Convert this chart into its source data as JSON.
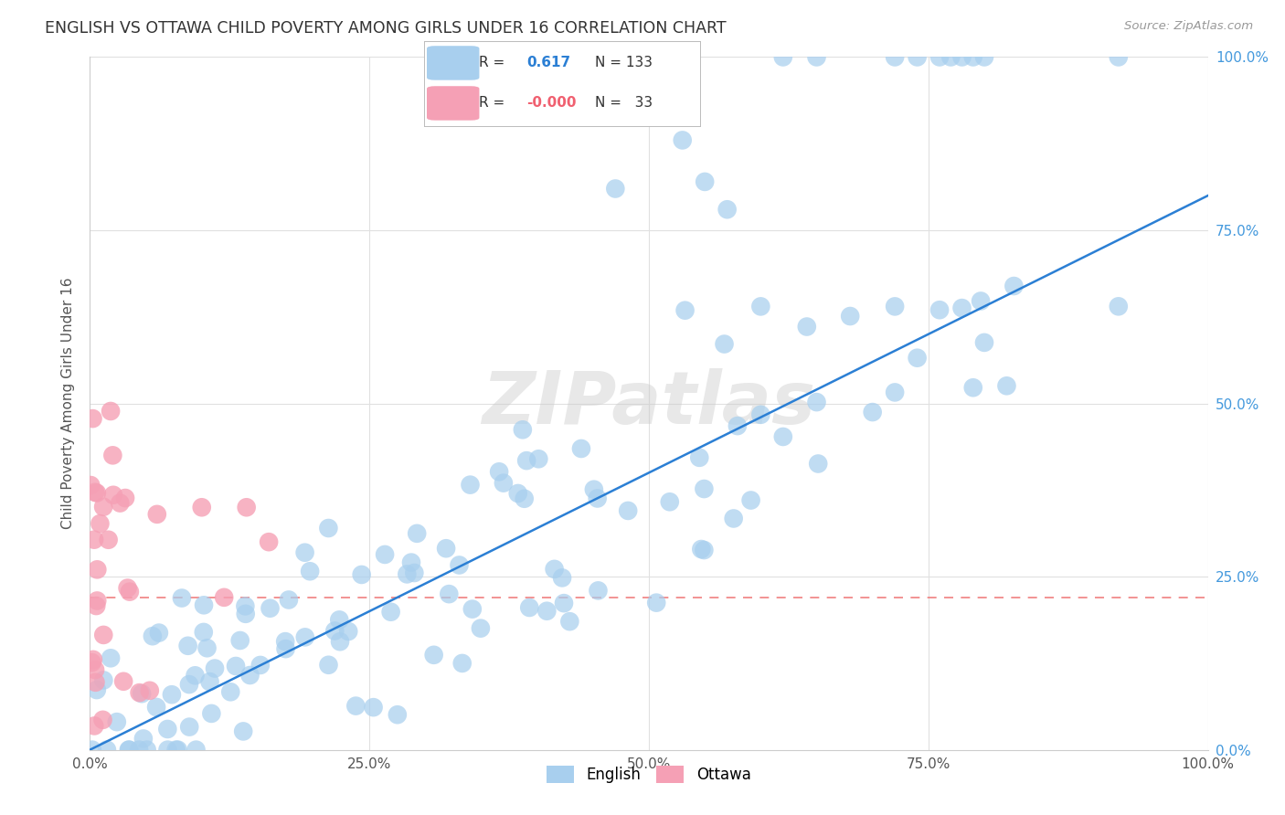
{
  "title": "ENGLISH VS OTTAWA CHILD POVERTY AMONG GIRLS UNDER 16 CORRELATION CHART",
  "source": "Source: ZipAtlas.com",
  "ylabel": "Child Poverty Among Girls Under 16",
  "xlim": [
    0,
    1
  ],
  "ylim": [
    0,
    1
  ],
  "xticks": [
    0,
    0.25,
    0.5,
    0.75,
    1.0
  ],
  "xticklabels": [
    "0.0%",
    "25.0%",
    "50.0%",
    "75.0%",
    "100.0%"
  ],
  "ytick_right_labels": [
    "0.0%",
    "25.0%",
    "50.0%",
    "75.0%",
    "100.0%"
  ],
  "ytick_right_values": [
    0,
    0.25,
    0.5,
    0.75,
    1.0
  ],
  "legend_english_R": "0.617",
  "legend_english_N": "133",
  "legend_ottawa_R": "-0.000",
  "legend_ottawa_N": "33",
  "english_color": "#A8CFEE",
  "ottawa_color": "#F5A0B5",
  "trendline_english_color": "#2B7FD4",
  "trendline_ottawa_color": "#F08080",
  "watermark": "ZIPatlas",
  "background_color": "#FFFFFF",
  "grid_color": "#E0E0E0",
  "title_color": "#333333",
  "axis_label_color": "#555555",
  "right_axis_color": "#4499DD",
  "ottawa_trendline_y": 0.22,
  "trendline_x0": 0.0,
  "trendline_y0": 0.0,
  "trendline_x1": 1.0,
  "trendline_y1": 0.8
}
